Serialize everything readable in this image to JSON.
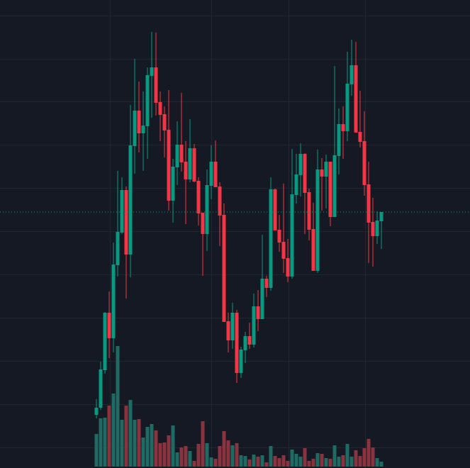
{
  "chart_data": {
    "type": "candlestick",
    "title": "",
    "xlabel": "",
    "ylabel": "",
    "ylim": [
      0,
      66
    ],
    "grid": true,
    "legend": "none",
    "last_price": 36.1,
    "colors": {
      "background": "#151924",
      "grid": "#222632",
      "up": "#089981",
      "down": "#f23645",
      "volume_up": "#1f6a62",
      "volume_down": "#8c3340",
      "last_price_line": "#089981"
    },
    "ohlc": [
      [
        7.5,
        9.7,
        7.0,
        8.5
      ],
      [
        8.5,
        15.0,
        8.2,
        13.9
      ],
      [
        13.8,
        22.0,
        13.3,
        21.9
      ],
      [
        21.9,
        24.9,
        15.5,
        18.3
      ],
      [
        18.3,
        31.8,
        16.3,
        28.7
      ],
      [
        28.6,
        41.9,
        27.0,
        33.3
      ],
      [
        33.2,
        41.0,
        33.0,
        39.2
      ],
      [
        39.2,
        39.7,
        23.9,
        30.1
      ],
      [
        30.1,
        51.2,
        26.9,
        45.5
      ],
      [
        45.4,
        57.7,
        41.5,
        50.4
      ],
      [
        50.4,
        54.5,
        44.5,
        47.2
      ],
      [
        47.2,
        53.1,
        41.9,
        48.3
      ],
      [
        48.2,
        56.5,
        43.6,
        55.4
      ],
      [
        55.3,
        61.5,
        49.4,
        56.5
      ],
      [
        56.5,
        61.4,
        49.7,
        51.5
      ],
      [
        51.6,
        53.1,
        46.1,
        49.8
      ],
      [
        49.9,
        51.0,
        43.8,
        47.6
      ],
      [
        47.7,
        53.3,
        36.3,
        37.7
      ],
      [
        37.7,
        43.6,
        34.6,
        42.5
      ],
      [
        42.4,
        48.9,
        39.9,
        45.6
      ],
      [
        45.6,
        52.9,
        41.8,
        43.1
      ],
      [
        43.2,
        46.1,
        34.4,
        40.7
      ],
      [
        40.7,
        49.2,
        40.3,
        45.1
      ],
      [
        45.1,
        45.7,
        40.3,
        40.4
      ],
      [
        40.5,
        41.0,
        34.2,
        35.9
      ],
      [
        36.0,
        36.0,
        27.1,
        33.0
      ],
      [
        33.0,
        42.1,
        30.6,
        39.9
      ],
      [
        39.8,
        45.5,
        37.9,
        43.2
      ],
      [
        43.2,
        46.2,
        39.6,
        39.6
      ],
      [
        39.7,
        40.3,
        31.3,
        35.6
      ],
      [
        35.7,
        37.3,
        20.6,
        20.6
      ],
      [
        20.7,
        21.9,
        16.3,
        18.0
      ],
      [
        18.0,
        23.3,
        16.8,
        21.9
      ],
      [
        21.9,
        22.3,
        12.0,
        13.4
      ],
      [
        13.4,
        17.1,
        12.7,
        16.7
      ],
      [
        16.6,
        19.2,
        14.8,
        18.6
      ],
      [
        18.6,
        20.5,
        16.8,
        17.4
      ],
      [
        17.4,
        24.6,
        17.0,
        22.8
      ],
      [
        22.8,
        25.1,
        19.3,
        21.0
      ],
      [
        21.0,
        32.9,
        21.0,
        26.7
      ],
      [
        26.7,
        27.1,
        24.1,
        25.4
      ],
      [
        25.4,
        41.0,
        25.0,
        39.3
      ],
      [
        39.3,
        39.4,
        33.5,
        33.5
      ],
      [
        33.6,
        35.7,
        30.5,
        31.8
      ],
      [
        31.9,
        40.1,
        27.5,
        29.5
      ],
      [
        29.6,
        32.3,
        26.2,
        27.0
      ],
      [
        27.0,
        45.0,
        26.7,
        38.6
      ],
      [
        38.5,
        44.3,
        37.3,
        41.4
      ],
      [
        41.3,
        45.8,
        38.3,
        44.3
      ],
      [
        44.3,
        44.4,
        33.0,
        38.8
      ],
      [
        38.9,
        39.4,
        32.1,
        33.6
      ],
      [
        33.7,
        37.4,
        27.8,
        27.8
      ],
      [
        27.8,
        44.9,
        27.5,
        42.1
      ],
      [
        42.1,
        43.7,
        36.3,
        41.1
      ],
      [
        41.1,
        44.2,
        36.6,
        43.2
      ],
      [
        43.2,
        43.2,
        34.1,
        35.4
      ],
      [
        35.4,
        56.7,
        35.4,
        44.1
      ],
      [
        44.0,
        50.7,
        41.4,
        48.5
      ],
      [
        48.5,
        51.0,
        43.6,
        47.5
      ],
      [
        47.5,
        58.7,
        46.1,
        54.2
      ],
      [
        54.1,
        60.4,
        52.5,
        56.8
      ],
      [
        56.8,
        60.1,
        47.3,
        47.3
      ],
      [
        47.4,
        53.2,
        45.2,
        46.0
      ],
      [
        46.1,
        50.3,
        38.4,
        39.9
      ],
      [
        40.0,
        43.2,
        28.9,
        34.6
      ],
      [
        34.7,
        38.1,
        28.4,
        32.7
      ],
      [
        32.7,
        36.2,
        31.6,
        34.9
      ],
      [
        34.8,
        36.1,
        30.9,
        36.1
      ]
    ],
    "volume": [
      46,
      68,
      69,
      86,
      103,
      170,
      66,
      86,
      94,
      66,
      67,
      41,
      56,
      60,
      51,
      33,
      34,
      44,
      58,
      20,
      27,
      29,
      22,
      8,
      32,
      64,
      33,
      13,
      11,
      29,
      50,
      37,
      30,
      33,
      16,
      15,
      10,
      17,
      14,
      16,
      6,
      29,
      15,
      12,
      16,
      8,
      24,
      18,
      14,
      26,
      8,
      11,
      19,
      18,
      12,
      11,
      30,
      14,
      16,
      32,
      14,
      23,
      15,
      26,
      39,
      27,
      12,
      7
    ]
  }
}
